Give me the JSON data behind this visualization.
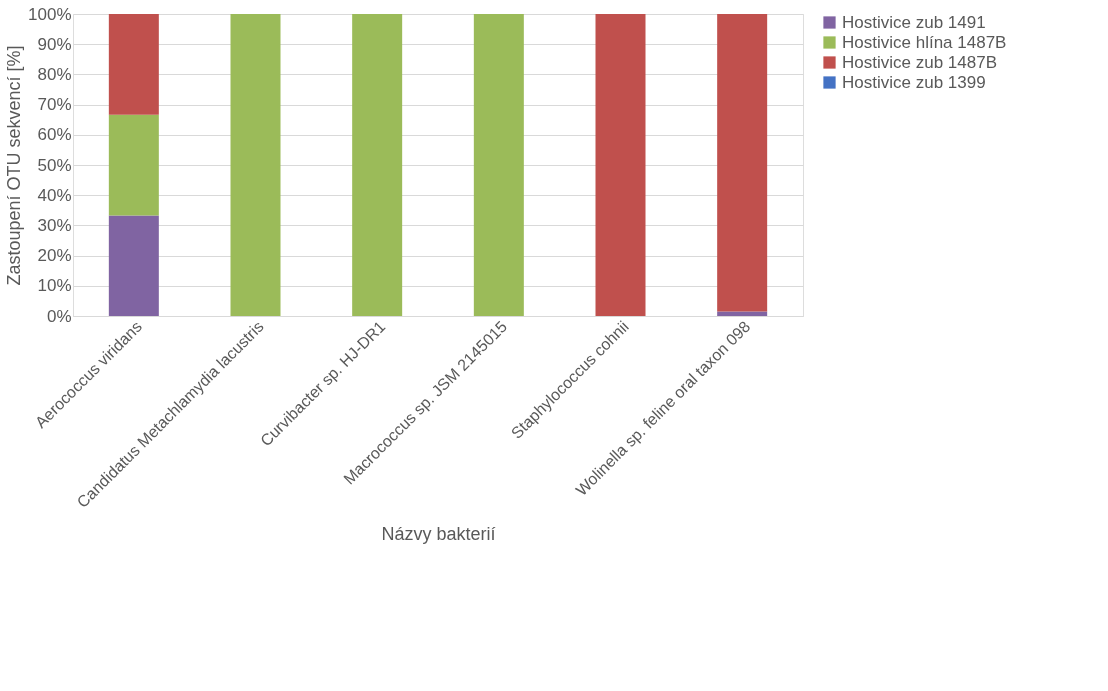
{
  "chart_data": {
    "type": "bar",
    "stacked": true,
    "xlabel": "Názvy bakterií",
    "ylabel": "Zastoupení OTU sekvencí [%]",
    "categories": [
      "Aerococcus viridans",
      "Candidatus Metachlamydia lacustris",
      "Curvibacter sp. HJ-DR1",
      "Macrococcus sp. JSM 2145015",
      "Staphylococcus cohnii",
      "Wolinella sp. feline oral taxon 098"
    ],
    "series": [
      {
        "name": "Hostivice zub 1491",
        "color": "#8064a2",
        "values": [
          33.3,
          0,
          0,
          0,
          0,
          1.5
        ]
      },
      {
        "name": "Hostivice hlína 1487B",
        "color": "#9bbb59",
        "values": [
          33.3,
          100,
          100,
          100,
          0,
          0
        ]
      },
      {
        "name": "Hostivice zub 1487B",
        "color": "#c0504d",
        "values": [
          33.4,
          0,
          0,
          0,
          100,
          98.5
        ]
      },
      {
        "name": "Hostivice zub 1399",
        "color": "#4472c4",
        "values": [
          0,
          0,
          0,
          0,
          0,
          0
        ]
      }
    ],
    "ylim": [
      0,
      100
    ],
    "yticks": [
      {
        "value": 0,
        "label": "0%"
      },
      {
        "value": 10,
        "label": "10%"
      },
      {
        "value": 20,
        "label": "20%"
      },
      {
        "value": 30,
        "label": "30%"
      },
      {
        "value": 40,
        "label": "40%"
      },
      {
        "value": 50,
        "label": "50%"
      },
      {
        "value": 60,
        "label": "60%"
      },
      {
        "value": 70,
        "label": "70%"
      },
      {
        "value": 80,
        "label": "80%"
      },
      {
        "value": 90,
        "label": "90%"
      },
      {
        "value": 100,
        "label": "100%"
      }
    ],
    "grid": "y",
    "legend": "right"
  }
}
